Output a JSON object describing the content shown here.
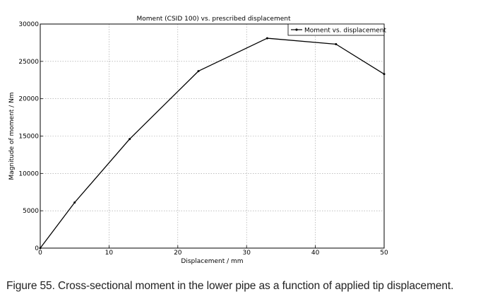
{
  "chart_data": {
    "type": "line",
    "title": "Moment (CSID 100) vs. prescribed displacement",
    "xlabel": "Displacement / mm",
    "ylabel": "Magnitude of moment / Nm",
    "xlim": [
      0,
      50
    ],
    "ylim": [
      0,
      30000
    ],
    "xticks": [
      0,
      10,
      20,
      30,
      40,
      50
    ],
    "yticks": [
      0,
      5000,
      10000,
      15000,
      20000,
      25000,
      30000
    ],
    "grid": true,
    "legend": "top-right",
    "series": [
      {
        "name": "Moment vs. displacement",
        "color": "#000000",
        "x": [
          0,
          5,
          13,
          23,
          33,
          43,
          50
        ],
        "y": [
          0,
          6100,
          14600,
          23700,
          28100,
          27300,
          23300
        ]
      }
    ]
  },
  "caption": "Figure 55. Cross-sectional moment in the lower pipe as a function of applied tip displacement."
}
